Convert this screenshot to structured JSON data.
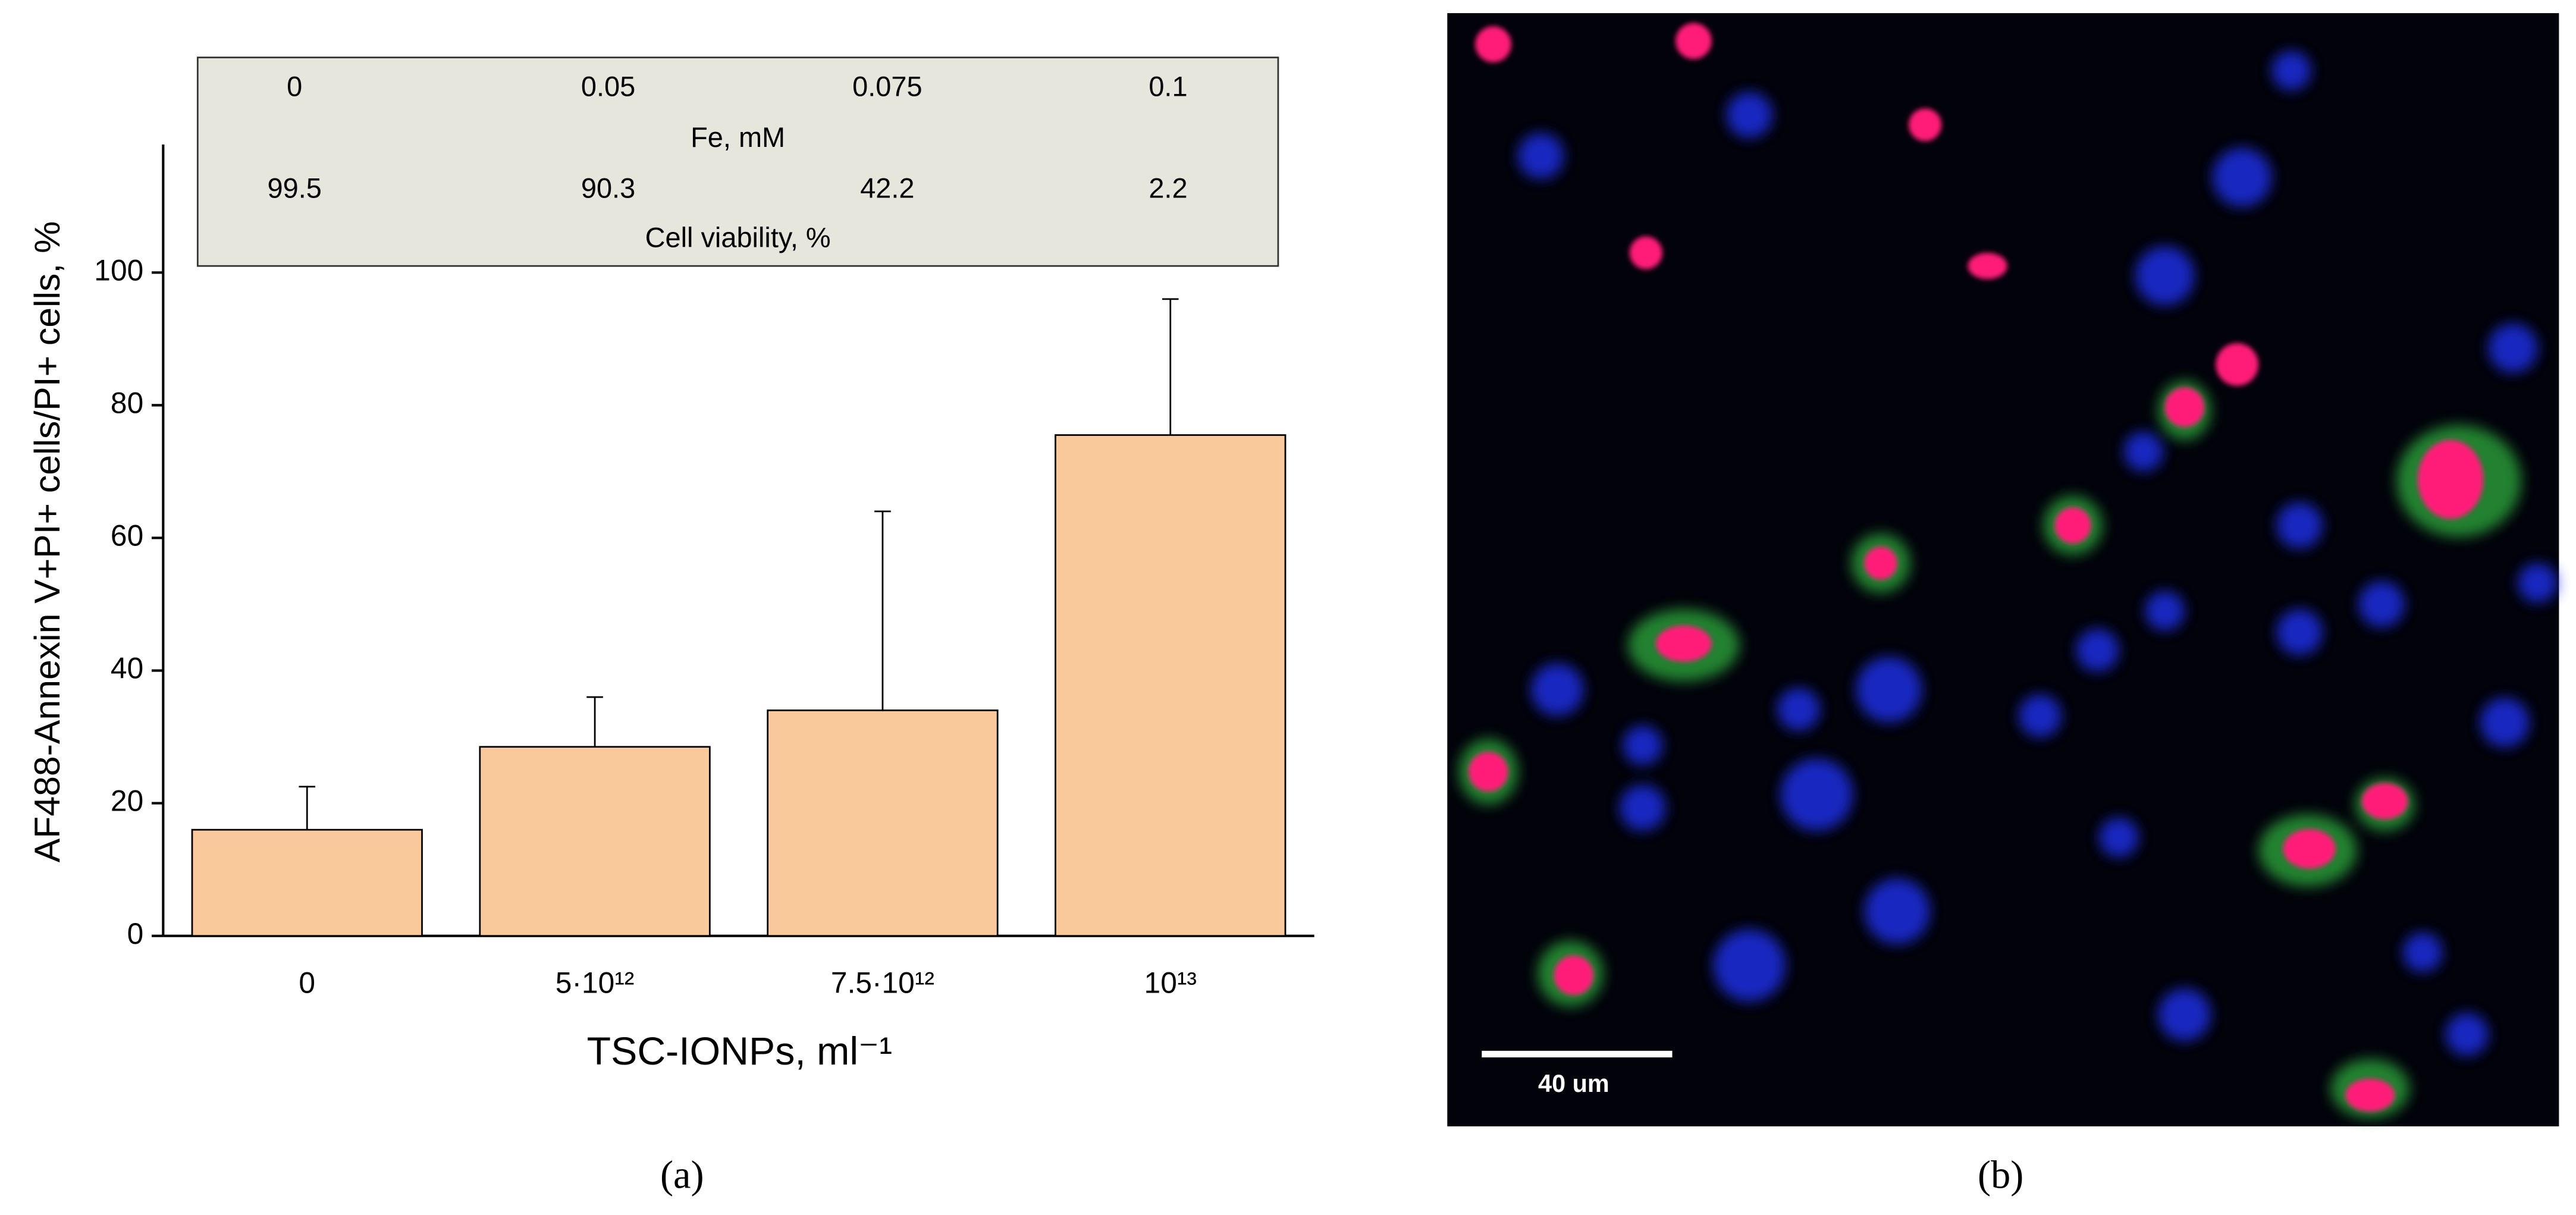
{
  "chart_data": {
    "type": "bar",
    "y_label": "AF488-Annexin V+PI+ cells/PI+ cells, %",
    "x_label": "TSC-IONPs, ml⁻¹",
    "categories": [
      "0",
      "5·10¹²",
      "7.5·10¹²",
      "10¹³"
    ],
    "values": [
      16,
      28.5,
      34,
      75.5
    ],
    "errors": [
      6.5,
      7.5,
      30,
      20.5
    ],
    "color": "#f9c89b",
    "ylim": [
      0,
      120
    ],
    "yticks": [
      0,
      20,
      40,
      60,
      80,
      100
    ],
    "table": {
      "row1": [
        "0",
        "0.05",
        "0.075",
        "0.1"
      ],
      "row1_label": "Fe, mM",
      "row2": [
        "99.5",
        "90.3",
        "42.2",
        "2.2"
      ],
      "row2_label": "Cell viability, %"
    },
    "caption": "(a)"
  },
  "image_b": {
    "scale_bar_label": "40 um",
    "caption": "(b)"
  }
}
